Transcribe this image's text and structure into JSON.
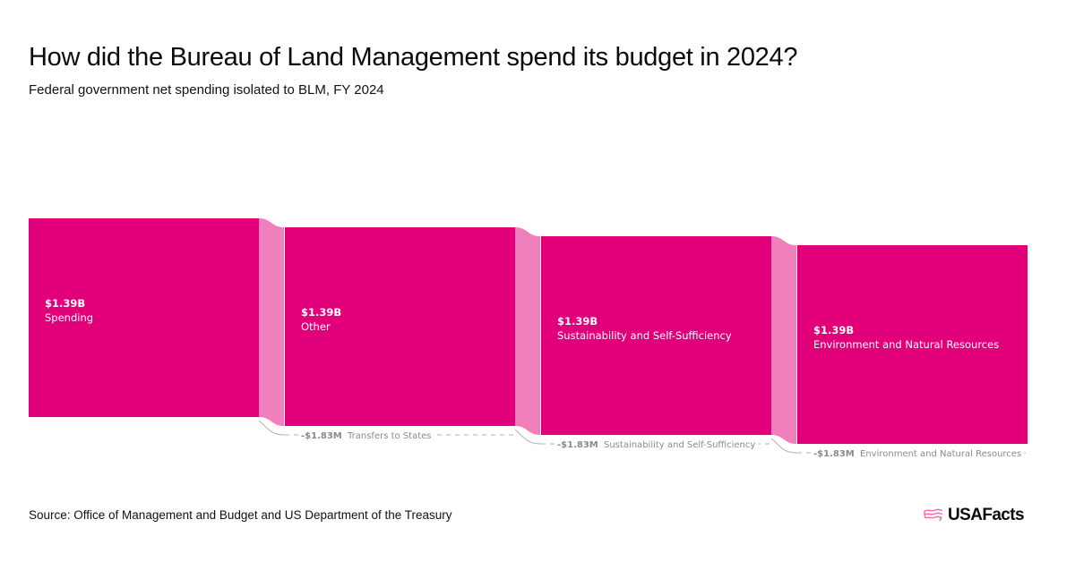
{
  "header": {
    "title": "How did the Bureau of Land Management spend its budget in 2024?",
    "subtitle": "Federal government net spending isolated to BLM, FY 2024"
  },
  "footer": {
    "source": "Source: Office of Management and Budget and US Department of the Treasury",
    "brand": "USAFacts"
  },
  "colors": {
    "node": "#e2007a",
    "link": "#f080bb",
    "outflow_line": "#b0b0b0",
    "outflow_text": "#8a8a8a",
    "brand_icon": "#f06aa8"
  },
  "chart_data": {
    "type": "sankey",
    "title": "How did the Bureau of Land Management spend its budget in 2024?",
    "subtitle": "Federal government net spending isolated to BLM, FY 2024",
    "unit": "USD",
    "nodes": [
      {
        "name": "Spending",
        "value_label": "$1.39B",
        "value": 1390000000
      },
      {
        "name": "Other",
        "value_label": "$1.39B",
        "value": 1390000000
      },
      {
        "name": "Sustainability and Self-Sufficiency",
        "value_label": "$1.39B",
        "value": 1390000000
      },
      {
        "name": "Environment and Natural Resources",
        "value_label": "$1.39B",
        "value": 1390000000
      }
    ],
    "links": [
      {
        "source": "Spending",
        "target": "Other",
        "value": 1390000000
      },
      {
        "source": "Other",
        "target": "Sustainability and Self-Sufficiency",
        "value": 1390000000
      },
      {
        "source": "Sustainability and Self-Sufficiency",
        "target": "Environment and Natural Resources",
        "value": 1390000000
      }
    ],
    "outflows": [
      {
        "from": "Other",
        "name": "Transfers to States",
        "value_label": "-$1.83M",
        "value": -1830000
      },
      {
        "from": "Sustainability and Self-Sufficiency",
        "name": "Sustainability and Self-Sufficiency",
        "value_label": "-$1.83M",
        "value": -1830000
      },
      {
        "from": "Environment and Natural Resources",
        "name": "Environment and Natural Resources",
        "value_label": "-$1.83M",
        "value": -1830000
      }
    ]
  }
}
